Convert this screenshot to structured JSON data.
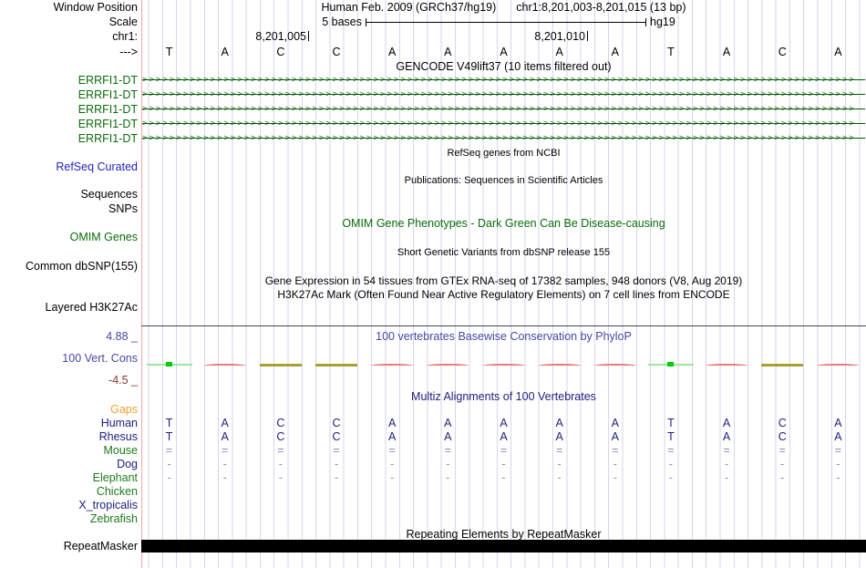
{
  "header": {
    "assembly_title": "Human Feb. 2009 (GRCh37/hg19)",
    "position_title": "chr1:8,201,003-8,201,015 (13 bp)",
    "window_position_label": "Window Position",
    "scale_row_label": "Scale",
    "scale_value": "5 bases",
    "assembly_short": "hg19",
    "chrom_label": "chr1:",
    "strand_label": "--->",
    "coord_ticks": [
      "8,201,005",
      "8,201,010"
    ],
    "bases": [
      "T",
      "A",
      "C",
      "C",
      "A",
      "A",
      "A",
      "A",
      "A",
      "T",
      "A",
      "C",
      "A"
    ]
  },
  "tracks": {
    "gencode": {
      "title": "GENCODE V49lift37 (10 items filtered out)",
      "items": [
        "ERRFI1-DT",
        "ERRFI1-DT",
        "ERRFI1-DT",
        "ERRFI1-DT",
        "ERRFI1-DT"
      ],
      "arrow_glyph": ">"
    },
    "refseq": {
      "center_label": "RefSeq genes from NCBI",
      "left_label": "RefSeq Curated"
    },
    "publications": {
      "center_label": "Publications: Sequences in Scientific Articles",
      "left_labels": [
        "Sequences",
        "SNPs"
      ]
    },
    "omim": {
      "center_label": "OMIM Gene Phenotypes - Dark Green Can Be Disease-causing",
      "left_label": "OMIM Genes"
    },
    "dbsnp": {
      "center_label": "Short Genetic Variants from dbSNP release 155",
      "left_label": "Common dbSNP(155)"
    },
    "gtex": {
      "center_label": "Gene Expression in 54 tissues from GTEx RNA-seq of 17382 samples, 948 donors (V8, Aug 2019)"
    },
    "h3k27ac": {
      "center_label": "H3K27Ac Mark (Often Found Near Active Regulatory Elements) on 7 cell lines from ENCODE",
      "left_label": "Layered H3K27Ac"
    },
    "phylop": {
      "center_label": "100 vertebrates Basewise Conservation by PhyloP",
      "left_label": "100 Vert. Cons",
      "axis_max_label": "4.88 _",
      "axis_min_label": "-4.5 _",
      "per_base_marks": [
        "green",
        "red",
        "olive",
        "olive",
        "red",
        "red",
        "red",
        "red",
        "red",
        "green",
        "red",
        "olive",
        "red"
      ]
    },
    "multiz": {
      "center_label": "Multiz Alignments of 100 Vertebrates",
      "rows": [
        {
          "label": "Gaps",
          "color": "orange",
          "cells": [
            "",
            "",
            "",
            "",
            "",
            "",
            "",
            "",
            "",
            "",
            "",
            "",
            ""
          ]
        },
        {
          "label": "Human",
          "color": "navy",
          "cells": [
            "T",
            "A",
            "C",
            "C",
            "A",
            "A",
            "A",
            "A",
            "A",
            "T",
            "A",
            "C",
            "A"
          ]
        },
        {
          "label": "Rhesus",
          "color": "navy",
          "cells": [
            "T",
            "A",
            "C",
            "C",
            "A",
            "A",
            "A",
            "A",
            "A",
            "T",
            "A",
            "C",
            "A"
          ]
        },
        {
          "label": "Mouse",
          "color": "green",
          "cells": [
            "=",
            "=",
            "=",
            "=",
            "=",
            "=",
            "=",
            "=",
            "=",
            "=",
            "=",
            "=",
            "="
          ]
        },
        {
          "label": "Dog",
          "color": "navy",
          "cells": [
            "-",
            "-",
            "-",
            "-",
            "-",
            "-",
            "-",
            "-",
            "-",
            "-",
            "-",
            "-",
            "-"
          ]
        },
        {
          "label": "Elephant",
          "color": "green",
          "cells": [
            "-",
            "-",
            "-",
            "-",
            "-",
            "-",
            "-",
            "-",
            "-",
            "-",
            "-",
            "-",
            "-"
          ]
        },
        {
          "label": "Chicken",
          "color": "green",
          "cells": [
            "",
            "",
            "",
            "",
            "",
            "",
            "",
            "",
            "",
            "",
            "",
            "",
            ""
          ]
        },
        {
          "label": "X_tropicalis",
          "color": "navy",
          "cells": [
            "",
            "",
            "",
            "",
            "",
            "",
            "",
            "",
            "",
            "",
            "",
            "",
            ""
          ]
        },
        {
          "label": "Zebrafish",
          "color": "green",
          "cells": [
            "",
            "",
            "",
            "",
            "",
            "",
            "",
            "",
            "",
            "",
            "",
            "",
            ""
          ]
        }
      ]
    },
    "repeatmasker": {
      "center_label": "Repeating Elements by RepeatMasker",
      "left_label": "RepeatMasker"
    }
  },
  "colors": {
    "gene_green": "#0b6b0b",
    "refseq_blue": "#2323c0",
    "phylop_blue": "#4747a5",
    "phylop_min_maroon": "#8b3232",
    "multiz_navy": "#202080",
    "species_green": "#1e7a1e",
    "gaps_orange": "#efa02f",
    "cons_red": "#ee7777",
    "cons_olive": "#a8a030",
    "cons_bright_green": "#00cc00",
    "grid_lavender": "#d6d6ee",
    "edge_pink": "#f8a8a8",
    "repeat_bar_black": "#000000"
  }
}
